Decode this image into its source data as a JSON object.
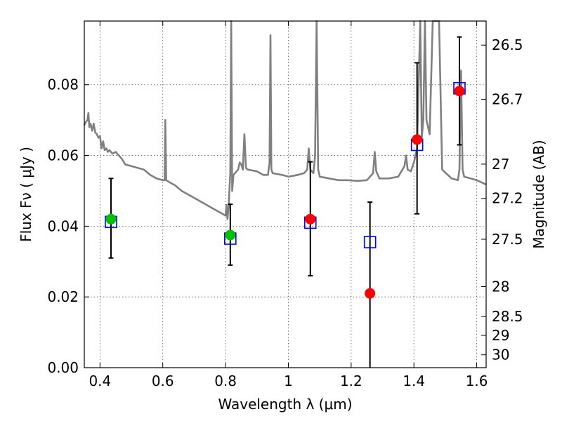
{
  "chart_data": {
    "type": "scatter",
    "xlabel": "Wavelength  λ (μm)",
    "ylabel": "Flux  Fν  ( μJy )",
    "ylabel_right": "Magnitude (AB)",
    "xlim": [
      0.35,
      1.63
    ],
    "ylim": [
      0.0,
      0.098
    ],
    "grid": true,
    "x_ticks": [
      0.4,
      0.6,
      0.8,
      1.0,
      1.2,
      1.4,
      1.6
    ],
    "x_tick_labels": [
      "0.4",
      "0.6",
      "0.8",
      "1",
      "1.2",
      "1.4",
      "1.6"
    ],
    "y_ticks": [
      0.0,
      0.02,
      0.04,
      0.06,
      0.08
    ],
    "y_tick_labels": [
      "0.00",
      "0.02",
      "0.04",
      "0.06",
      "0.08"
    ],
    "right_ticks": [
      {
        "mag": 26.5,
        "label": "26.5"
      },
      {
        "mag": 26.7,
        "label": "26.7"
      },
      {
        "mag": 27.0,
        "label": "27"
      },
      {
        "mag": 27.2,
        "label": "27.2"
      },
      {
        "mag": 27.5,
        "label": "27.5"
      },
      {
        "mag": 28.0,
        "label": "28"
      },
      {
        "mag": 28.5,
        "label": "28.5"
      },
      {
        "mag": 29.0,
        "label": "29"
      },
      {
        "mag": 30.0,
        "label": "30"
      }
    ],
    "colors": {
      "template": "#808080",
      "model": "#0000ff",
      "green_points": "#00c000",
      "red_points": "#ff0000",
      "errorbar": "#000000",
      "grid": "#555555"
    },
    "series": [
      {
        "kind": "line",
        "points": [
          [
            0.35,
            0.0685
          ],
          [
            0.355,
            0.0695
          ],
          [
            0.36,
            0.07
          ],
          [
            0.363,
            0.072
          ],
          [
            0.366,
            0.068
          ],
          [
            0.37,
            0.069
          ],
          [
            0.375,
            0.067
          ],
          [
            0.38,
            0.069
          ],
          [
            0.385,
            0.0665
          ],
          [
            0.39,
            0.066
          ],
          [
            0.395,
            0.065
          ],
          [
            0.4,
            0.0655
          ],
          [
            0.405,
            0.062
          ],
          [
            0.41,
            0.064
          ],
          [
            0.415,
            0.0615
          ],
          [
            0.42,
            0.062
          ],
          [
            0.425,
            0.061
          ],
          [
            0.43,
            0.0615
          ],
          [
            0.44,
            0.0605
          ],
          [
            0.45,
            0.061
          ],
          [
            0.46,
            0.06
          ],
          [
            0.47,
            0.059
          ],
          [
            0.48,
            0.0575
          ],
          [
            0.5,
            0.057
          ],
          [
            0.52,
            0.0565
          ],
          [
            0.54,
            0.056
          ],
          [
            0.56,
            0.0545
          ],
          [
            0.58,
            0.0535
          ],
          [
            0.6,
            0.053
          ],
          [
            0.606,
            0.053
          ],
          [
            0.608,
            0.07
          ],
          [
            0.611,
            0.053
          ],
          [
            0.62,
            0.0525
          ],
          [
            0.64,
            0.0515
          ],
          [
            0.66,
            0.05
          ],
          [
            0.68,
            0.049
          ],
          [
            0.7,
            0.048
          ],
          [
            0.72,
            0.047
          ],
          [
            0.74,
            0.046
          ],
          [
            0.76,
            0.045
          ],
          [
            0.78,
            0.044
          ],
          [
            0.8,
            0.043
          ],
          [
            0.803,
            0.046
          ],
          [
            0.806,
            0.042
          ],
          [
            0.81,
            0.046
          ],
          [
            0.815,
            0.055
          ],
          [
            0.818,
            0.098
          ],
          [
            0.821,
            0.05
          ],
          [
            0.825,
            0.0545
          ],
          [
            0.83,
            0.055
          ],
          [
            0.84,
            0.056
          ],
          [
            0.845,
            0.058
          ],
          [
            0.85,
            0.0575
          ],
          [
            0.855,
            0.056
          ],
          [
            0.86,
            0.066
          ],
          [
            0.865,
            0.0565
          ],
          [
            0.87,
            0.056
          ],
          [
            0.9,
            0.0555
          ],
          [
            0.92,
            0.0545
          ],
          [
            0.935,
            0.0545
          ],
          [
            0.94,
            0.058
          ],
          [
            0.943,
            0.094
          ],
          [
            0.946,
            0.056
          ],
          [
            0.95,
            0.055
          ],
          [
            0.98,
            0.0545
          ],
          [
            1.0,
            0.054
          ],
          [
            1.03,
            0.0545
          ],
          [
            1.05,
            0.055
          ],
          [
            1.06,
            0.056
          ],
          [
            1.065,
            0.062
          ],
          [
            1.07,
            0.056
          ],
          [
            1.08,
            0.055
          ],
          [
            1.085,
            0.06
          ],
          [
            1.09,
            0.098
          ],
          [
            1.095,
            0.056
          ],
          [
            1.1,
            0.054
          ],
          [
            1.13,
            0.0535
          ],
          [
            1.16,
            0.053
          ],
          [
            1.19,
            0.053
          ],
          [
            1.22,
            0.0528
          ],
          [
            1.25,
            0.053
          ],
          [
            1.27,
            0.055
          ],
          [
            1.275,
            0.061
          ],
          [
            1.28,
            0.0555
          ],
          [
            1.29,
            0.0535
          ],
          [
            1.32,
            0.0535
          ],
          [
            1.35,
            0.054
          ],
          [
            1.37,
            0.057
          ],
          [
            1.375,
            0.06
          ],
          [
            1.38,
            0.056
          ],
          [
            1.39,
            0.0555
          ],
          [
            1.4,
            0.058
          ],
          [
            1.41,
            0.062
          ],
          [
            1.42,
            0.098
          ],
          [
            1.425,
            0.065
          ],
          [
            1.43,
            0.07
          ],
          [
            1.435,
            0.098
          ],
          [
            1.44,
            0.07
          ],
          [
            1.45,
            0.066
          ],
          [
            1.46,
            0.098
          ],
          [
            1.47,
            0.098
          ],
          [
            1.48,
            0.098
          ],
          [
            1.49,
            0.056
          ],
          [
            1.52,
            0.0535
          ],
          [
            1.54,
            0.053
          ],
          [
            1.545,
            0.056
          ],
          [
            1.55,
            0.084
          ],
          [
            1.555,
            0.056
          ],
          [
            1.56,
            0.054
          ],
          [
            1.58,
            0.0535
          ],
          [
            1.6,
            0.053
          ],
          [
            1.63,
            0.0518
          ]
        ]
      },
      {
        "kind": "open-squares",
        "x": [
          0.435,
          0.815,
          1.07,
          1.26,
          1.41,
          1.545
        ],
        "y": [
          0.0412,
          0.0365,
          0.041,
          0.0355,
          0.063,
          0.079
        ]
      },
      {
        "kind": "filled-circles",
        "x": [
          0.435,
          0.815
        ],
        "y": [
          0.042,
          0.0375
        ],
        "yerr_low": [
          0.031,
          0.029
        ],
        "yerr_high": [
          0.0535,
          0.0462
        ]
      },
      {
        "kind": "filled-circles",
        "x": [
          1.07,
          1.26,
          1.41,
          1.545
        ],
        "y": [
          0.042,
          0.021,
          0.0645,
          0.0782
        ],
        "yerr_low": [
          0.026,
          0.0,
          0.0435,
          0.063
        ],
        "yerr_high": [
          0.0582,
          0.0468,
          0.0862,
          0.0935
        ]
      }
    ]
  }
}
